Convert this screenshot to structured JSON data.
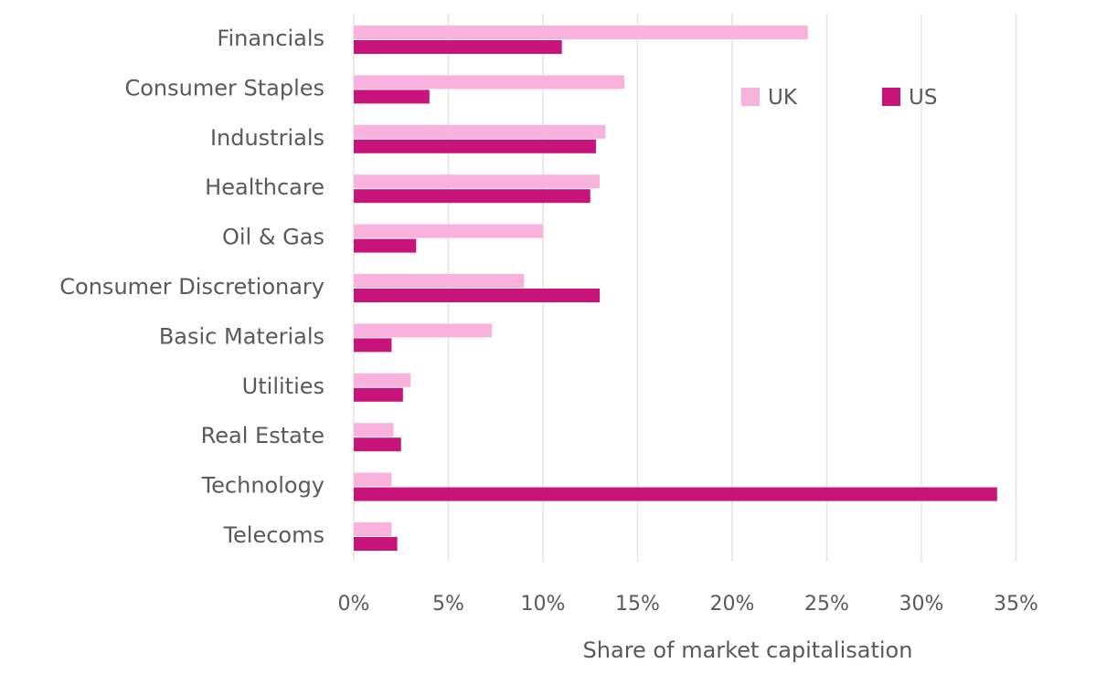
{
  "chart_data": {
    "type": "bar",
    "orientation": "horizontal",
    "categories": [
      "Financials",
      "Consumer Staples",
      "Industrials",
      "Healthcare",
      "Oil & Gas",
      "Consumer Discretionary",
      "Basic Materials",
      "Utilities",
      "Real Estate",
      "Technology",
      "Telecoms"
    ],
    "series": [
      {
        "name": "UK",
        "color": "#f9b2dc",
        "values": [
          24.0,
          14.3,
          13.3,
          13.0,
          10.0,
          9.0,
          7.3,
          3.0,
          2.1,
          2.0,
          2.0
        ]
      },
      {
        "name": "US",
        "color": "#c8137a",
        "values": [
          11.0,
          4.0,
          12.8,
          12.5,
          3.3,
          13.0,
          2.0,
          2.6,
          2.5,
          34.0,
          2.3
        ]
      }
    ],
    "xlabel": "Share of market capitalisation",
    "ylabel": "",
    "xlim": [
      0,
      35
    ],
    "x_ticks": [
      "0%",
      "5%",
      "10%",
      "15%",
      "20%",
      "25%",
      "30%",
      "35%"
    ],
    "grid": "vertical",
    "legend_position": "top-right"
  }
}
